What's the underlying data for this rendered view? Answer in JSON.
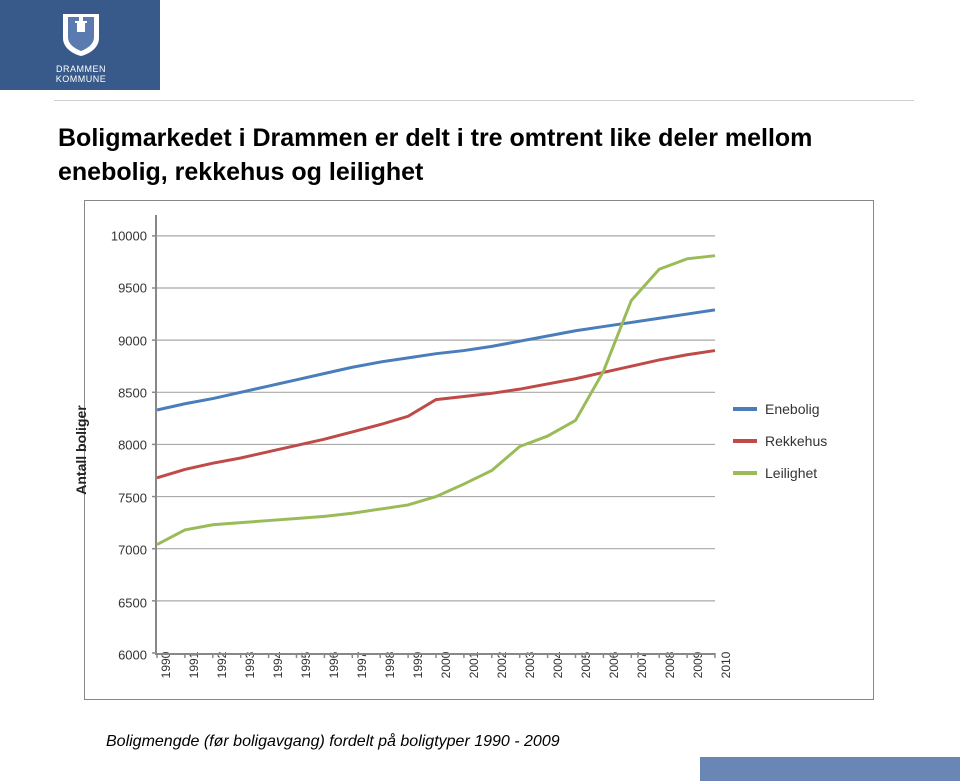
{
  "header": {
    "logo_name": "DRAMMEN KOMMUNE",
    "ribbon_color": "#385a8a"
  },
  "title": "Boligmarkedet i Drammen er delt i tre omtrent like deler mellom enebolig, rekkehus og leilighet",
  "caption": "Boligmengde (før boligavgang) fordelt på boligtyper 1990 - 2009",
  "chart": {
    "type": "line",
    "ylabel": "Antall boliger",
    "xlim": [
      1990,
      2010
    ],
    "ylim": [
      6000,
      10200
    ],
    "yticks": [
      6000,
      6500,
      7000,
      7500,
      8000,
      8500,
      9000,
      9500,
      10000
    ],
    "ygrid_min": 6500,
    "ygrid_max": 10000,
    "xticks": [
      1990,
      1991,
      1992,
      1993,
      1994,
      1995,
      1996,
      1997,
      1998,
      1999,
      2000,
      2001,
      2002,
      2003,
      2004,
      2005,
      2006,
      2007,
      2008,
      2009,
      2010
    ],
    "grid_color": "#a9a9a9",
    "axis_color": "#888888",
    "background_color": "#ffffff",
    "line_width": 3,
    "label_fontsize": 14,
    "tick_fontsize": 13,
    "series": [
      {
        "name": "Enebolig",
        "color": "#4a7ebb",
        "x": [
          1990,
          1991,
          1992,
          1993,
          1994,
          1995,
          1996,
          1997,
          1998,
          1999,
          2000,
          2001,
          2002,
          2003,
          2004,
          2005,
          2006,
          2007,
          2008,
          2009,
          2010
        ],
        "y": [
          8330,
          8390,
          8440,
          8500,
          8560,
          8620,
          8680,
          8740,
          8790,
          8830,
          8870,
          8900,
          8940,
          8990,
          9040,
          9090,
          9130,
          9170,
          9210,
          9250,
          9290
        ]
      },
      {
        "name": "Rekkehus",
        "color": "#be4b48",
        "x": [
          1990,
          1991,
          1992,
          1993,
          1994,
          1995,
          1996,
          1997,
          1998,
          1999,
          2000,
          2001,
          2002,
          2003,
          2004,
          2005,
          2006,
          2007,
          2008,
          2009,
          2010
        ],
        "y": [
          7680,
          7760,
          7820,
          7870,
          7930,
          7990,
          8050,
          8120,
          8190,
          8270,
          8430,
          8460,
          8490,
          8530,
          8580,
          8630,
          8690,
          8750,
          8810,
          8860,
          8900
        ]
      },
      {
        "name": "Leilighet",
        "color": "#9bbb59",
        "x": [
          1990,
          1991,
          1992,
          1993,
          1994,
          1995,
          1996,
          1997,
          1998,
          1999,
          2000,
          2001,
          2002,
          2003,
          2004,
          2005,
          2006,
          2007,
          2008,
          2009,
          2010
        ],
        "y": [
          7040,
          7180,
          7230,
          7250,
          7270,
          7290,
          7310,
          7340,
          7380,
          7420,
          7500,
          7620,
          7750,
          7980,
          8080,
          8230,
          8700,
          9380,
          9680,
          9780,
          9810
        ]
      }
    ],
    "legend": {
      "items": [
        {
          "label": "Enebolig",
          "color": "#4a7ebb"
        },
        {
          "label": "Rekkehus",
          "color": "#be4b48"
        },
        {
          "label": "Leilighet",
          "color": "#9bbb59"
        }
      ]
    }
  },
  "footer": {
    "block_color": "#6a86b4"
  }
}
